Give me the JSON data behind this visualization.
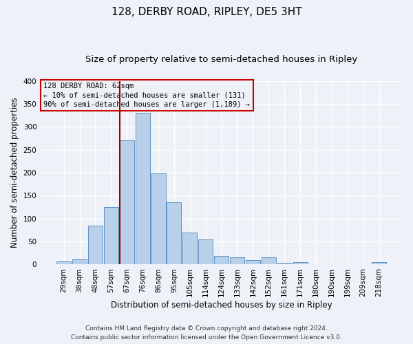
{
  "title": "128, DERBY ROAD, RIPLEY, DE5 3HT",
  "subtitle": "Size of property relative to semi-detached houses in Ripley",
  "xlabel": "Distribution of semi-detached houses by size in Ripley",
  "ylabel": "Number of semi-detached properties",
  "categories": [
    "29sqm",
    "38sqm",
    "48sqm",
    "57sqm",
    "67sqm",
    "76sqm",
    "86sqm",
    "95sqm",
    "105sqm",
    "114sqm",
    "124sqm",
    "133sqm",
    "142sqm",
    "152sqm",
    "161sqm",
    "171sqm",
    "180sqm",
    "190sqm",
    "199sqm",
    "209sqm",
    "218sqm"
  ],
  "values": [
    7,
    11,
    85,
    125,
    270,
    330,
    198,
    135,
    70,
    55,
    18,
    16,
    9,
    15,
    3,
    5,
    1,
    1,
    1,
    1,
    5
  ],
  "bar_color": "#b8d0ea",
  "bar_edge_color": "#6090c0",
  "vline_color": "#990000",
  "vline_x_index": 3.55,
  "annotation_line1": "128 DERBY ROAD: 62sqm",
  "annotation_line2": "← 10% of semi-detached houses are smaller (131)",
  "annotation_line3": "90% of semi-detached houses are larger (1,189) →",
  "annotation_box_color": "#cc0000",
  "ylim": [
    0,
    400
  ],
  "yticks": [
    0,
    50,
    100,
    150,
    200,
    250,
    300,
    350,
    400
  ],
  "footer_line1": "Contains HM Land Registry data © Crown copyright and database right 2024.",
  "footer_line2": "Contains public sector information licensed under the Open Government Licence v3.0.",
  "bg_color": "#eef2f8",
  "grid_color": "#ffffff",
  "title_fontsize": 11,
  "subtitle_fontsize": 9.5,
  "axis_label_fontsize": 8.5,
  "tick_fontsize": 7.5,
  "footer_fontsize": 6.5
}
